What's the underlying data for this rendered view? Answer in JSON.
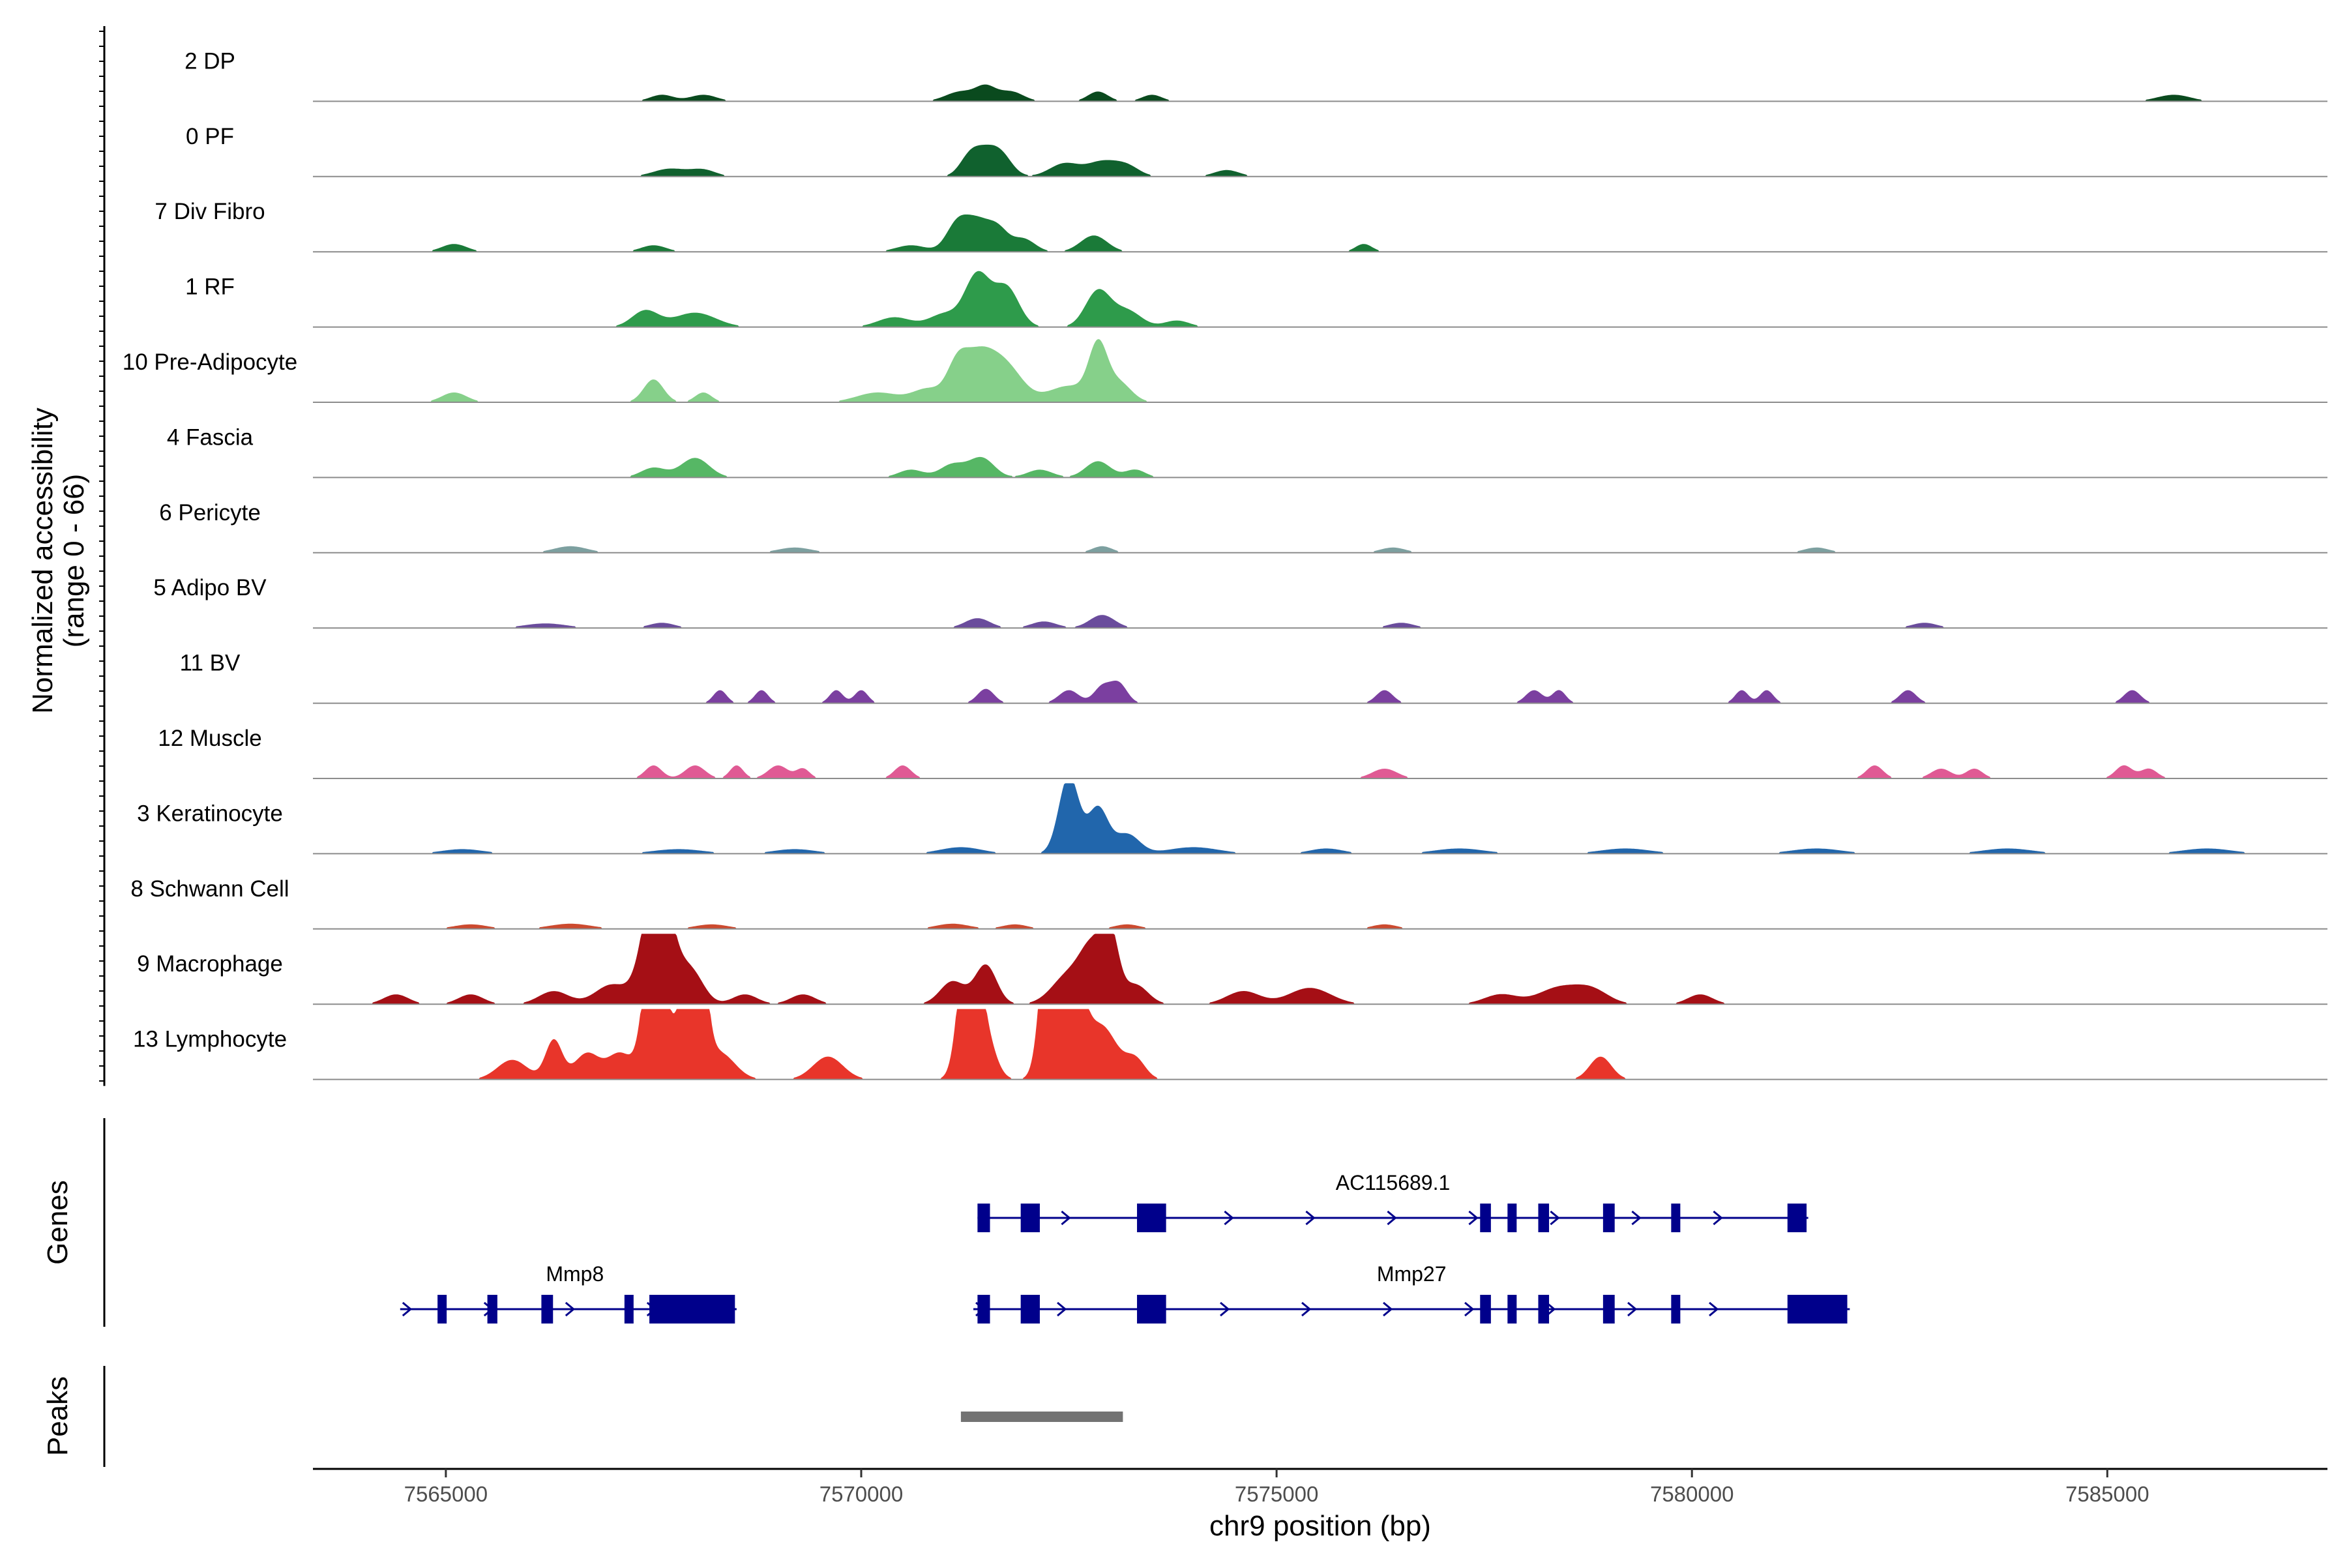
{
  "chart_data": {
    "type": "coverage-track",
    "region": "chr9",
    "ylabel": "Normalized accessibility",
    "ylabel_range": "(range 0 - 66)",
    "y_range": [
      0,
      66
    ],
    "xlabel": "chr9 position (bp)",
    "xlim": [
      7563400,
      7587650
    ],
    "x_ticks": [
      {
        "value": 7565000,
        "label": "7565000"
      },
      {
        "value": 7570000,
        "label": "7570000"
      },
      {
        "value": 7575000,
        "label": "7575000"
      },
      {
        "value": 7580000,
        "label": "7580000"
      },
      {
        "value": 7585000,
        "label": "7585000"
      }
    ],
    "series": [
      {
        "name": "2 DP",
        "color": "#0a4a1e",
        "peaks": [
          [
            7567600,
            1,
            140
          ],
          [
            7568100,
            1,
            160
          ],
          [
            7571200,
            1.5,
            180
          ],
          [
            7571500,
            2,
            120
          ],
          [
            7571800,
            1.5,
            150
          ],
          [
            7572850,
            1.5,
            120
          ],
          [
            7573500,
            1,
            120
          ],
          [
            7585800,
            1,
            200
          ]
        ]
      },
      {
        "name": "0 PF",
        "color": "#10612e",
        "peaks": [
          [
            7567700,
            1.2,
            200
          ],
          [
            7568100,
            1,
            150
          ],
          [
            7571300,
            2.5,
            120
          ],
          [
            7571500,
            3.5,
            150
          ],
          [
            7571700,
            2.5,
            130
          ],
          [
            7572450,
            2,
            180
          ],
          [
            7572900,
            2.2,
            180
          ],
          [
            7573200,
            1.5,
            150
          ],
          [
            7574400,
            1,
            150
          ]
        ]
      },
      {
        "name": "7 Div Fibro",
        "color": "#1a7a38",
        "peaks": [
          [
            7565100,
            1.2,
            150
          ],
          [
            7567500,
            1,
            150
          ],
          [
            7570600,
            1,
            180
          ],
          [
            7571150,
            4,
            130
          ],
          [
            7571400,
            4.5,
            150
          ],
          [
            7571650,
            3,
            120
          ],
          [
            7571950,
            2,
            140
          ],
          [
            7572800,
            2.5,
            160
          ],
          [
            7576050,
            1.2,
            100
          ]
        ]
      },
      {
        "name": "1 RF",
        "color": "#2e9b4b",
        "peaks": [
          [
            7567400,
            2.5,
            160
          ],
          [
            7568000,
            2.2,
            250
          ],
          [
            7570400,
            1.5,
            200
          ],
          [
            7571000,
            2,
            180
          ],
          [
            7571400,
            8,
            150
          ],
          [
            7571750,
            6,
            150
          ],
          [
            7572850,
            5.5,
            150
          ],
          [
            7573200,
            2.5,
            170
          ],
          [
            7573800,
            1,
            150
          ]
        ]
      },
      {
        "name": "10 Pre-Adipocyte",
        "color": "#86d08a",
        "peaks": [
          [
            7565100,
            1.5,
            150
          ],
          [
            7567500,
            3.5,
            120
          ],
          [
            7568100,
            1.5,
            100
          ],
          [
            7570200,
            1.5,
            250
          ],
          [
            7570800,
            2,
            180
          ],
          [
            7571150,
            4,
            120
          ],
          [
            7571400,
            7,
            200
          ],
          [
            7571750,
            5,
            200
          ],
          [
            7572500,
            2.5,
            250
          ],
          [
            7572850,
            8,
            110
          ],
          [
            7573100,
            3,
            150
          ]
        ]
      },
      {
        "name": "4 Fascia",
        "color": "#56b765",
        "peaks": [
          [
            7567500,
            1.5,
            150
          ],
          [
            7568000,
            3,
            170
          ],
          [
            7570600,
            1.2,
            150
          ],
          [
            7571100,
            2,
            150
          ],
          [
            7571450,
            3,
            150
          ],
          [
            7572150,
            1.2,
            150
          ],
          [
            7572850,
            2.5,
            150
          ],
          [
            7573300,
            1.2,
            120
          ]
        ]
      },
      {
        "name": "6 Pericyte",
        "color": "#7da0a0",
        "peaks": [
          [
            7566500,
            1,
            200
          ],
          [
            7569200,
            0.8,
            200
          ],
          [
            7572900,
            1,
            120
          ],
          [
            7576400,
            0.8,
            150
          ],
          [
            7581500,
            0.8,
            150
          ]
        ]
      },
      {
        "name": "5 Adipo BV",
        "color": "#6a4c9c",
        "peaks": [
          [
            7566200,
            0.7,
            250
          ],
          [
            7567600,
            0.8,
            150
          ],
          [
            7571400,
            1.5,
            150
          ],
          [
            7572200,
            1,
            150
          ],
          [
            7572900,
            2,
            150
          ],
          [
            7576500,
            0.8,
            150
          ],
          [
            7582800,
            0.8,
            150
          ]
        ]
      },
      {
        "name": "11 BV",
        "color": "#7b3fa0",
        "peaks": [
          [
            7568300,
            2,
            80
          ],
          [
            7568800,
            2,
            80
          ],
          [
            7569700,
            2,
            80
          ],
          [
            7570000,
            2,
            80
          ],
          [
            7571500,
            2.2,
            100
          ],
          [
            7572500,
            2,
            120
          ],
          [
            7572900,
            2.5,
            100
          ],
          [
            7573100,
            3,
            100
          ],
          [
            7576300,
            2,
            100
          ],
          [
            7578100,
            2,
            100
          ],
          [
            7578400,
            2,
            80
          ],
          [
            7580600,
            2,
            80
          ],
          [
            7580900,
            2,
            80
          ],
          [
            7582600,
            2,
            100
          ],
          [
            7585300,
            2,
            100
          ]
        ]
      },
      {
        "name": "12 Muscle",
        "color": "#e05a94",
        "peaks": [
          [
            7567500,
            2,
            100
          ],
          [
            7568000,
            2,
            120
          ],
          [
            7568500,
            2,
            80
          ],
          [
            7569000,
            2,
            120
          ],
          [
            7569300,
            1.5,
            80
          ],
          [
            7570500,
            2,
            100
          ],
          [
            7576300,
            1.5,
            150
          ],
          [
            7582200,
            2,
            100
          ],
          [
            7583000,
            1.5,
            120
          ],
          [
            7583400,
            1.5,
            100
          ],
          [
            7585200,
            2,
            100
          ],
          [
            7585500,
            1.5,
            100
          ]
        ]
      },
      {
        "name": "3 Keratinocyte",
        "color": "#2166ac",
        "peaks": [
          [
            7565200,
            0.7,
            250
          ],
          [
            7567800,
            0.7,
            300
          ],
          [
            7569200,
            0.7,
            250
          ],
          [
            7571200,
            1,
            250
          ],
          [
            7572500,
            12,
            120
          ],
          [
            7572850,
            7,
            120
          ],
          [
            7573200,
            3,
            150
          ],
          [
            7574000,
            1,
            300
          ],
          [
            7575600,
            0.8,
            200
          ],
          [
            7577200,
            0.8,
            300
          ],
          [
            7579200,
            0.8,
            300
          ],
          [
            7581500,
            0.8,
            300
          ],
          [
            7583800,
            0.8,
            300
          ],
          [
            7586200,
            0.8,
            300
          ]
        ]
      },
      {
        "name": "8 Schwann Cell",
        "color": "#cc4a2f",
        "peaks": [
          [
            7565300,
            0.7,
            200
          ],
          [
            7566500,
            0.8,
            250
          ],
          [
            7568200,
            0.7,
            200
          ],
          [
            7571100,
            0.8,
            200
          ],
          [
            7571850,
            0.7,
            150
          ],
          [
            7573200,
            0.7,
            150
          ],
          [
            7576300,
            0.7,
            150
          ]
        ]
      },
      {
        "name": "9 Macrophage",
        "color": "#a50f15",
        "peaks": [
          [
            7564400,
            1.5,
            150
          ],
          [
            7565300,
            1.5,
            150
          ],
          [
            7566300,
            2,
            180
          ],
          [
            7567000,
            3,
            200
          ],
          [
            7567550,
            22,
            160
          ],
          [
            7567950,
            5,
            150
          ],
          [
            7568600,
            1.5,
            150
          ],
          [
            7569300,
            1.5,
            150
          ],
          [
            7571100,
            3.5,
            150
          ],
          [
            7571500,
            6,
            130
          ],
          [
            7572500,
            4.5,
            200
          ],
          [
            7572800,
            8,
            150
          ],
          [
            7573000,
            9,
            100
          ],
          [
            7573300,
            3,
            150
          ],
          [
            7574600,
            2,
            200
          ],
          [
            7575400,
            2.5,
            250
          ],
          [
            7577700,
            1.5,
            200
          ],
          [
            7578400,
            2.5,
            250
          ],
          [
            7578800,
            2,
            200
          ],
          [
            7580100,
            1.5,
            150
          ]
        ]
      },
      {
        "name": "13 Lymphocyte",
        "color": "#e8352a",
        "peaks": [
          [
            7565800,
            3,
            180
          ],
          [
            7566300,
            6,
            100
          ],
          [
            7566700,
            4,
            150
          ],
          [
            7567100,
            4,
            150
          ],
          [
            7567500,
            25,
            110
          ],
          [
            7567800,
            7,
            180
          ],
          [
            7568000,
            34,
            100
          ],
          [
            7568300,
            4,
            180
          ],
          [
            7569600,
            3.5,
            180
          ],
          [
            7571300,
            28,
            110
          ],
          [
            7571500,
            6,
            120
          ],
          [
            7572300,
            37,
            110
          ],
          [
            7572550,
            16,
            130
          ],
          [
            7572900,
            8,
            180
          ],
          [
            7573300,
            3,
            120
          ],
          [
            7578900,
            3.5,
            130
          ]
        ]
      }
    ],
    "genes": [
      {
        "name": "AC115689.1",
        "strand": "+",
        "start": 7571400,
        "end": 7581400,
        "exons": [
          [
            7571400,
            7571550
          ],
          [
            7571920,
            7572150
          ],
          [
            7573320,
            7573670
          ],
          [
            7577450,
            7577580
          ],
          [
            7577780,
            7577890
          ],
          [
            7578150,
            7578280
          ],
          [
            7578930,
            7579070
          ],
          [
            7579750,
            7579850
          ],
          [
            7581150,
            7581380
          ]
        ]
      },
      {
        "name": "Mmp8",
        "strand": "+",
        "start": 7564450,
        "end": 7568500,
        "exons": [
          [
            7564900,
            7565000
          ],
          [
            7565500,
            7565620
          ],
          [
            7566150,
            7566290
          ],
          [
            7567150,
            7567250
          ],
          [
            7567450,
            7568480
          ]
        ]
      },
      {
        "name": "Mmp27",
        "strand": "+",
        "start": 7571350,
        "end": 7581900,
        "exons": [
          [
            7571400,
            7571550
          ],
          [
            7571920,
            7572150
          ],
          [
            7573320,
            7573670
          ],
          [
            7577450,
            7577580
          ],
          [
            7577780,
            7577890
          ],
          [
            7578150,
            7578280
          ],
          [
            7578930,
            7579070
          ],
          [
            7579750,
            7579850
          ],
          [
            7581150,
            7581870
          ]
        ]
      }
    ],
    "peaks_track": [
      {
        "start": 7571200,
        "end": 7573150
      }
    ],
    "panel_titles": {
      "genes": "Genes",
      "peaks": "Peaks"
    }
  }
}
